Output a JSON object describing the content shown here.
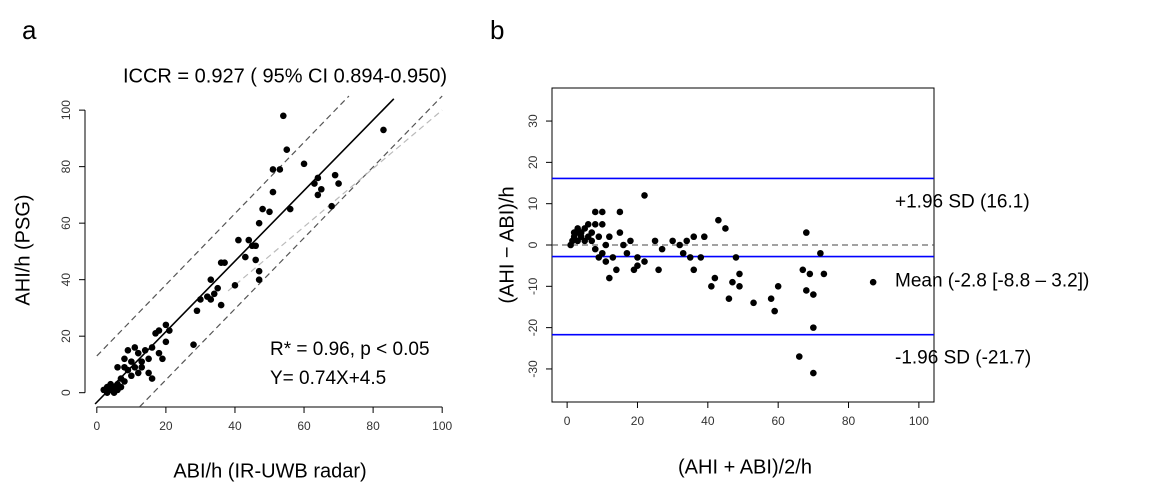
{
  "chart_data": [
    {
      "type": "scatter",
      "panel": "a",
      "title": "ICCR = 0.927 ( 95% CI 0.894-0.950)",
      "x_label": "ABI/h (IR-UWB radar)",
      "y_label": "AHI/h (PSG)",
      "annotations": [
        "R* = 0.96, p < 0.05",
        "Y= 0.74X+4.5"
      ],
      "xlim": [
        -4,
        104
      ],
      "ylim": [
        -4,
        105
      ],
      "xticks": [
        0,
        20,
        40,
        60,
        80,
        100
      ],
      "yticks": [
        0,
        20,
        40,
        60,
        80,
        100
      ],
      "box": false,
      "color": "#000000",
      "lines": [
        {
          "x": [
            -0.5,
            86
          ],
          "y": [
            -4,
            104
          ],
          "style": "solid",
          "color": "#000000"
        },
        {
          "x": [
            0,
            73
          ],
          "y": [
            13,
            105
          ],
          "style": "dashed",
          "color": "#555555"
        },
        {
          "x": [
            12.4,
            100
          ],
          "y": [
            -5,
            105
          ],
          "style": "dashed",
          "color": "#555555"
        },
        {
          "x": [
            38,
            100
          ],
          "y": [
            36,
            100
          ],
          "style": "dashed",
          "color": "#bbbbbb"
        }
      ],
      "x": [
        2,
        3,
        4,
        5,
        5,
        6,
        6,
        7,
        7,
        8,
        8,
        9,
        10,
        10,
        11,
        12,
        12,
        13,
        14,
        15,
        15,
        16,
        16,
        17,
        18,
        18,
        19,
        20,
        20,
        21,
        9,
        11,
        13,
        6,
        4,
        3,
        8,
        28,
        29,
        30,
        32,
        33,
        33,
        34,
        35,
        36,
        36,
        37,
        40,
        41,
        44,
        45,
        46,
        47,
        47,
        47,
        48,
        50,
        51,
        51,
        53,
        54,
        55,
        56,
        60,
        63,
        64,
        64,
        65,
        68,
        69,
        70,
        83,
        46,
        43
      ],
      "y": [
        1,
        0,
        1,
        0,
        2,
        1,
        3,
        2,
        5,
        4,
        9,
        8,
        6,
        11,
        9,
        7,
        14,
        9,
        15,
        7,
        12,
        5,
        16,
        21,
        14,
        22,
        12,
        18,
        24,
        22,
        15,
        16,
        11,
        9,
        3,
        2,
        12,
        17,
        29,
        33,
        34,
        40,
        33,
        35,
        37,
        31,
        46,
        46,
        38,
        54,
        54,
        52,
        47,
        40,
        43,
        60,
        65,
        64,
        71,
        79,
        79,
        98,
        86,
        65,
        81,
        74,
        76,
        70,
        72,
        66,
        77,
        74,
        93,
        52,
        48
      ]
    },
    {
      "type": "bland-altman",
      "panel": "b",
      "x_label": "(AHI + ABI)/2/h",
      "y_label": "(AHI − ABI)/h",
      "xlim": [
        -4.3,
        104.3
      ],
      "ylim": [
        -38,
        38
      ],
      "xticks": [
        0,
        20,
        40,
        60,
        80,
        100
      ],
      "yticks": [
        -30,
        -20,
        -10,
        0,
        10,
        20,
        30
      ],
      "box": true,
      "color": "#000000",
      "hlines": [
        {
          "value": 16.1,
          "label": "+1.96 SD (16.1)",
          "color": "#0000ff",
          "style": "solid"
        },
        {
          "value": -2.8,
          "label": "Mean (-2.8 [-8.8 – 3.2])",
          "color": "#0000ff",
          "style": "solid"
        },
        {
          "value": -21.7,
          "label": "-1.96 SD (-21.7)",
          "color": "#0000ff",
          "style": "solid"
        },
        {
          "value": 0,
          "color": "#444444",
          "style": "dashed"
        }
      ],
      "x": [
        1,
        1.5,
        2,
        2,
        3,
        3,
        4,
        4,
        5,
        5,
        6,
        6,
        7,
        7,
        8,
        8,
        9,
        9,
        10,
        10,
        11,
        11,
        12,
        12,
        13,
        14,
        15,
        15,
        16,
        17,
        18,
        19,
        20,
        20,
        22,
        22,
        25,
        26,
        27,
        30,
        32,
        33,
        34,
        35,
        36,
        36,
        38,
        39,
        41,
        42,
        43,
        45,
        46,
        47,
        48,
        49,
        49,
        53,
        58,
        59,
        60,
        66,
        67,
        68,
        68,
        69,
        70,
        70,
        70,
        72,
        73,
        87,
        3,
        8,
        10
      ],
      "y": [
        0,
        1,
        2,
        3,
        1,
        4,
        2,
        3,
        4,
        1,
        5,
        2,
        1,
        3,
        -1,
        8,
        2,
        -3,
        5,
        8,
        -4,
        0,
        -8,
        2,
        -3,
        -6,
        8,
        3,
        0,
        -2,
        1,
        -6,
        -5,
        -3,
        -4,
        12,
        1,
        -6,
        -1,
        1,
        0,
        -2,
        1,
        -3,
        -6,
        2,
        -3,
        2,
        -10,
        -8,
        6,
        4,
        -13,
        -9,
        -3,
        -7,
        -10,
        -14,
        -13,
        -16,
        -10,
        -27,
        -6,
        3,
        -11,
        -7,
        -12,
        -20,
        -31,
        -2,
        -7,
        -9,
        3,
        5,
        -2
      ]
    }
  ]
}
